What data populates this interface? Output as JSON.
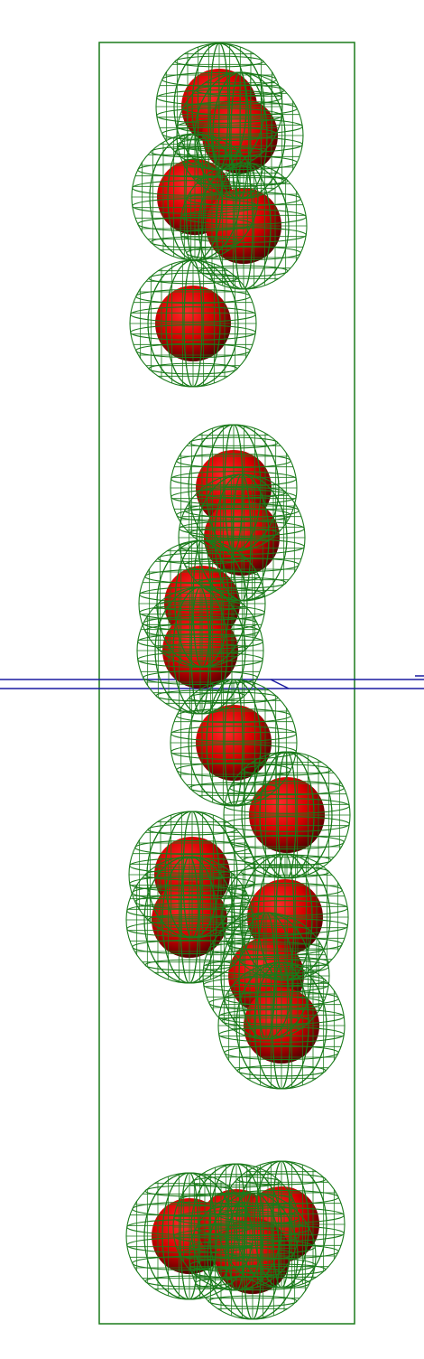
{
  "scene": {
    "background": "#ffffff",
    "container_color": "#1a7a1a",
    "sphere_color": "#e60000",
    "sphere_shadow_color": "#5a0000",
    "wire_color": "#1a7a1a",
    "plane_color": "#1a1aa0",
    "particle_count": 26
  }
}
